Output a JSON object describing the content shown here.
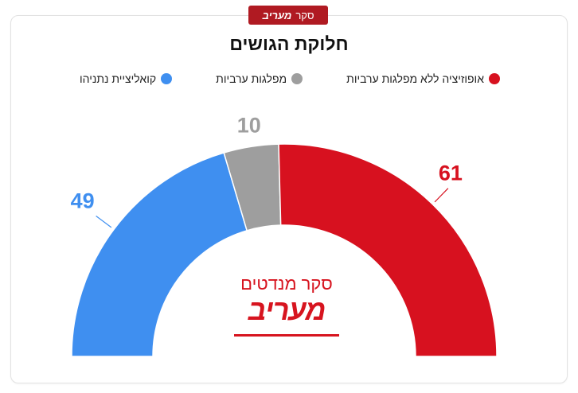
{
  "badge": {
    "text": "סקר",
    "brand": "מעריב"
  },
  "title": "חלוקת הגושים",
  "legend": [
    {
      "label": "אופוזיציה ללא מפלגות ערביות",
      "color": "#d7111f"
    },
    {
      "label": "מפלגות ערביות",
      "color": "#9e9e9e"
    },
    {
      "label": "קואליציית נתניהו",
      "color": "#3f8ff0"
    }
  ],
  "watermark": {
    "sub": "סקר מנדטים",
    "brand": "מעריב"
  },
  "chart_data": {
    "type": "pie",
    "variant": "half-donut",
    "title": "חלוקת הגושים",
    "total": 120,
    "start_side": "left",
    "slices": [
      {
        "label": "קואליציית נתניהו",
        "value": 49,
        "color": "#3f8ff0"
      },
      {
        "label": "מפלגות ערביות",
        "value": 10,
        "color": "#9e9e9e"
      },
      {
        "label": "אופוזיציה ללא מפלגות ערביות",
        "value": 61,
        "color": "#d7111f"
      }
    ],
    "legend": "top"
  }
}
